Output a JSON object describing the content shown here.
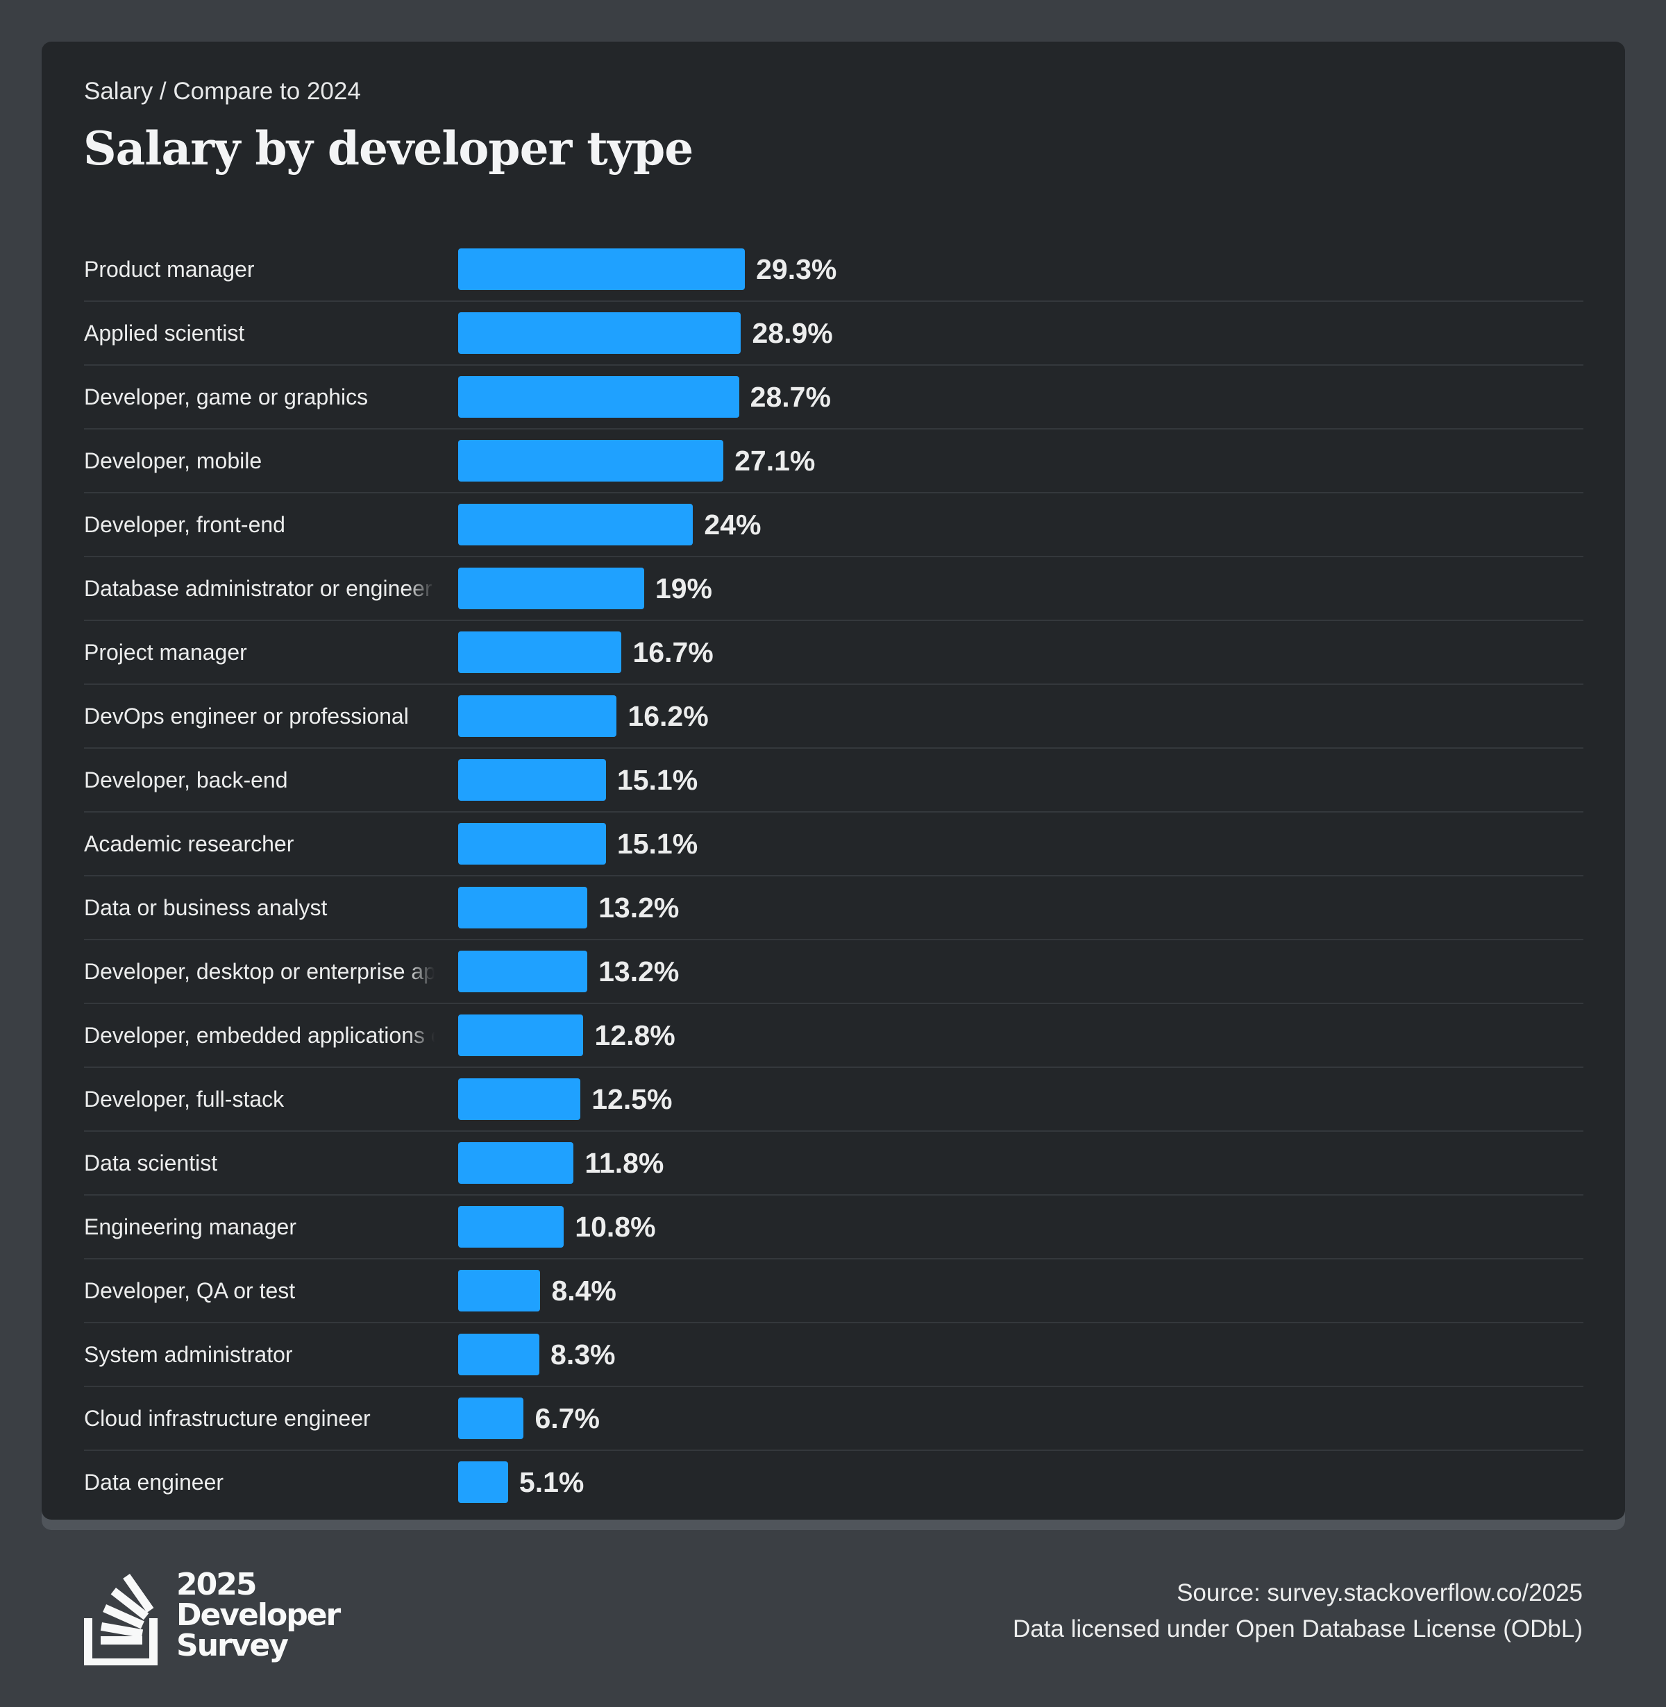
{
  "breadcrumb": "Salary / Compare to 2024",
  "title": "Salary by developer type",
  "colors": {
    "bar": "#1fa1ff",
    "card": "#232629",
    "background": "#3b3f44"
  },
  "chart_data": {
    "type": "bar",
    "orientation": "horizontal",
    "title": "Salary by developer type",
    "categories": [
      "Product manager",
      "Applied scientist",
      "Developer, game or graphics",
      "Developer, mobile",
      "Developer, front-end",
      "Database administrator or engineer",
      "Project manager",
      "DevOps engineer or professional",
      "Developer, back-end",
      "Academic researcher",
      "Data or business analyst",
      "Developer, desktop or enterprise applications",
      "Developer, embedded applications or devices",
      "Developer, full-stack",
      "Data scientist",
      "Engineering manager",
      "Developer, QA or test",
      "System administrator",
      "Cloud infrastructure engineer",
      "Data engineer"
    ],
    "values": [
      29.3,
      28.9,
      28.7,
      27.1,
      24,
      19,
      16.7,
      16.2,
      15.1,
      15.1,
      13.2,
      13.2,
      12.8,
      12.5,
      11.8,
      10.8,
      8.4,
      8.3,
      6.7,
      5.1
    ],
    "value_labels": [
      "29.3%",
      "28.9%",
      "28.7%",
      "27.1%",
      "24%",
      "19%",
      "16.7%",
      "16.2%",
      "15.1%",
      "15.1%",
      "13.2%",
      "13.2%",
      "12.8%",
      "12.5%",
      "11.8%",
      "10.8%",
      "8.4%",
      "8.3%",
      "6.7%",
      "5.1%"
    ],
    "grid": false
  },
  "footer": {
    "logo_text": [
      "2025",
      "Developer",
      "Survey"
    ],
    "source": "Source: survey.stackoverflow.co/2025",
    "license": "Data licensed under Open Database License (ODbL)"
  }
}
